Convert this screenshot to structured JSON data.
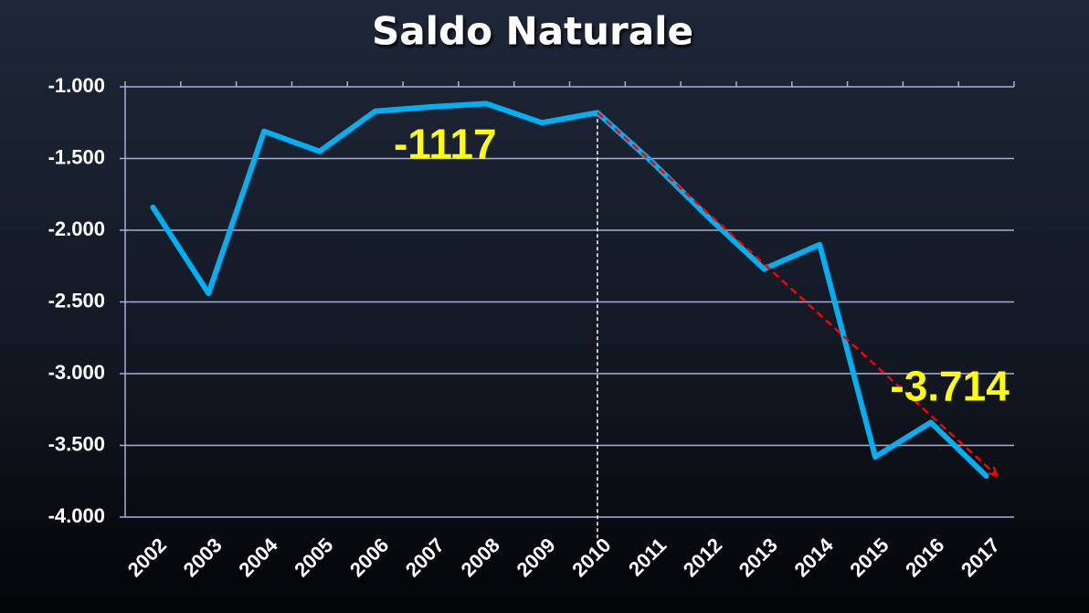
{
  "chart_data": {
    "type": "line",
    "title": "Saldo Naturale",
    "categories": [
      "2002",
      "2003",
      "2004",
      "2005",
      "2006",
      "2007",
      "2008",
      "2009",
      "2010",
      "2011",
      "2012",
      "2013",
      "2014",
      "2015",
      "2016",
      "2017"
    ],
    "series": [
      {
        "name": "Saldo Naturale",
        "color": "#00b0f0",
        "values": [
          -1840,
          -2440,
          -1310,
          -1450,
          -1170,
          -1140,
          -1117,
          -1250,
          -1180,
          -1530,
          -1910,
          -2270,
          -2100,
          -3580,
          -3340,
          -3714
        ],
        "value_labels": [
          null,
          null,
          null,
          null,
          null,
          null,
          "-1117",
          null,
          null,
          null,
          null,
          null,
          null,
          null,
          null,
          "-3.714"
        ]
      }
    ],
    "ylim": [
      -4000,
      -1000
    ],
    "yticks": [
      {
        "value": -4000,
        "label": "-4.000"
      },
      {
        "value": -3500,
        "label": "-3.500"
      },
      {
        "value": -3000,
        "label": "-3.000"
      },
      {
        "value": -2500,
        "label": "-2.500"
      },
      {
        "value": -2000,
        "label": "-2.000"
      },
      {
        "value": -1500,
        "label": "-1.500"
      },
      {
        "value": -1000,
        "label": "-1.000"
      }
    ],
    "grid": true,
    "trend_color": "#ff0000"
  }
}
